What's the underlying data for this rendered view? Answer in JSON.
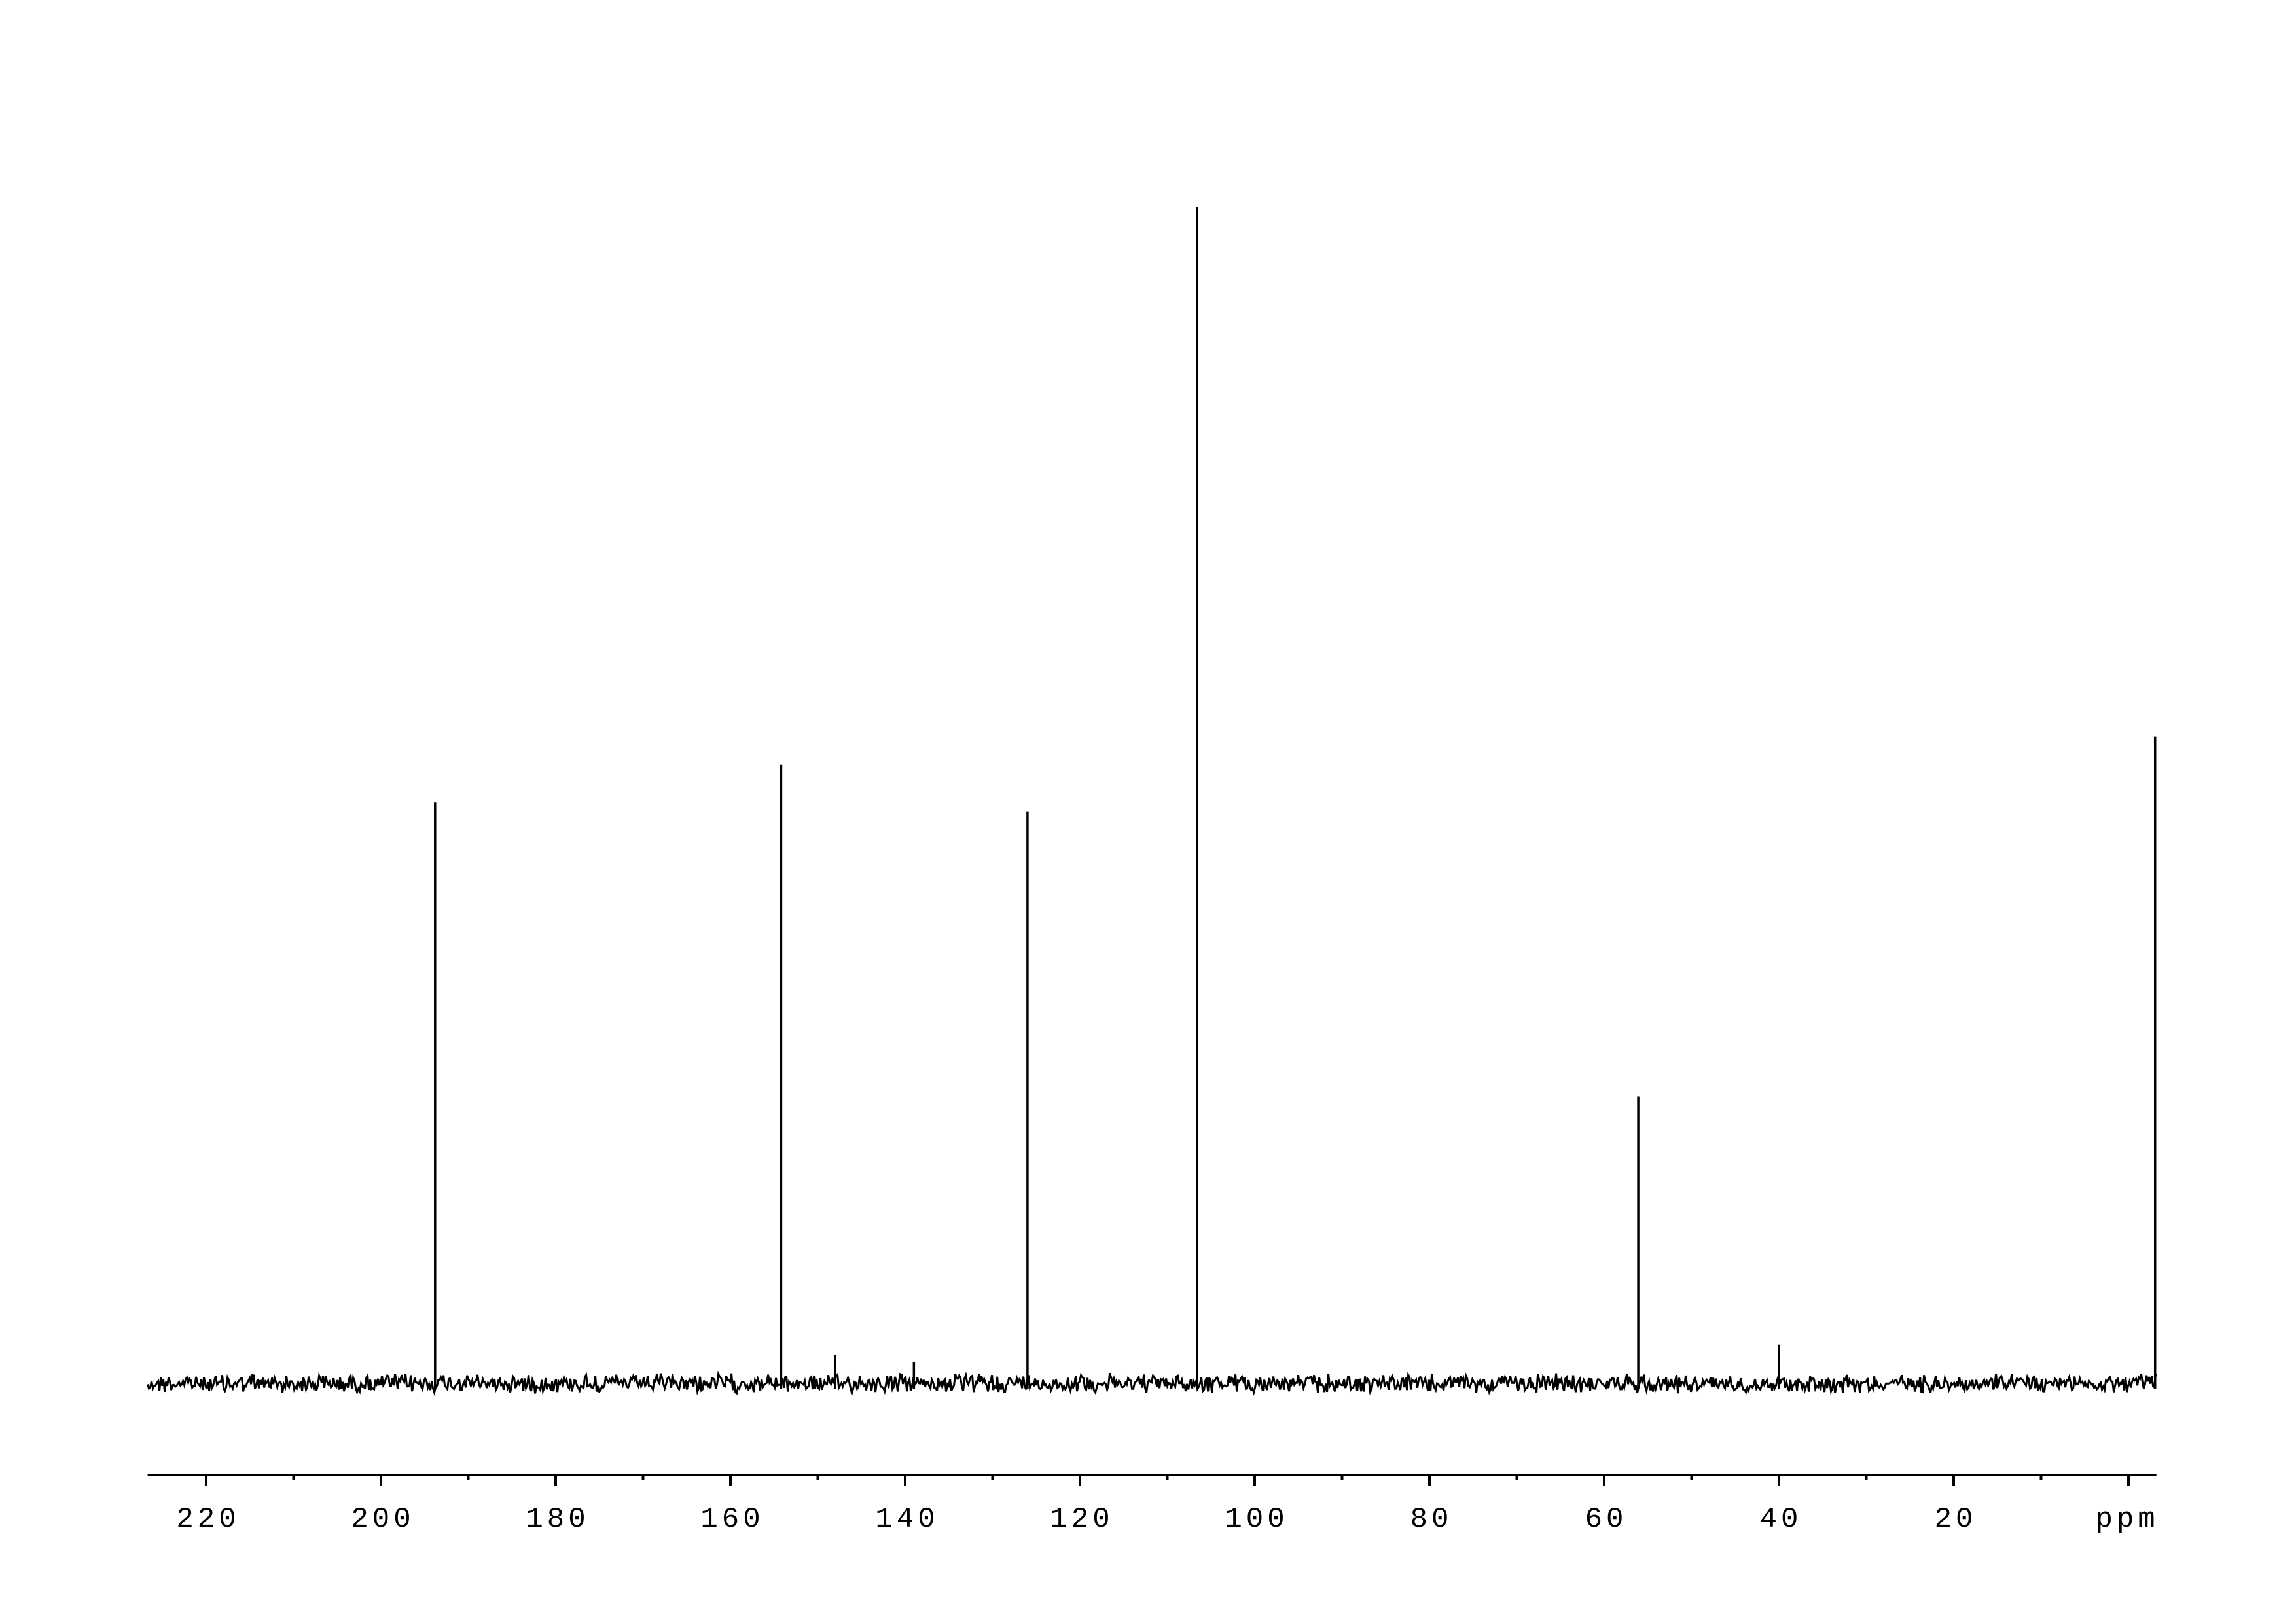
{
  "chart_data": {
    "type": "line",
    "title": "",
    "xlabel": "ppm",
    "ylabel": "",
    "xlim": [
      226.7,
      -3.2
    ],
    "x_reversed": true,
    "ylim": [
      -3,
      100
    ],
    "grid": false,
    "legend": "none",
    "x_ticks_major": [
      220,
      200,
      180,
      160,
      140,
      120,
      100,
      80,
      60,
      40,
      20,
      0
    ],
    "x_tick_labels": [
      "220",
      "200",
      "180",
      "160",
      "140",
      "120",
      "100",
      "80",
      "60",
      "40",
      "20"
    ],
    "x_ticks_minor": [
      210,
      190,
      170,
      150,
      130,
      110,
      90,
      70,
      50,
      30,
      10
    ],
    "unit_label": "ppm",
    "peaks": [
      {
        "ppm": 193.8,
        "intensity": 49.4
      },
      {
        "ppm": 154.2,
        "intensity": 52.6
      },
      {
        "ppm": 148.0,
        "intensity": 2.4
      },
      {
        "ppm": 139.0,
        "intensity": 1.8
      },
      {
        "ppm": 126.0,
        "intensity": 48.6
      },
      {
        "ppm": 106.6,
        "intensity": 100
      },
      {
        "ppm": 56.1,
        "intensity": 24.4
      },
      {
        "ppm": 40.0,
        "intensity": 3.3
      },
      {
        "ppm": -3.2,
        "intensity": 55.0
      }
    ],
    "line_color": "#000000"
  }
}
